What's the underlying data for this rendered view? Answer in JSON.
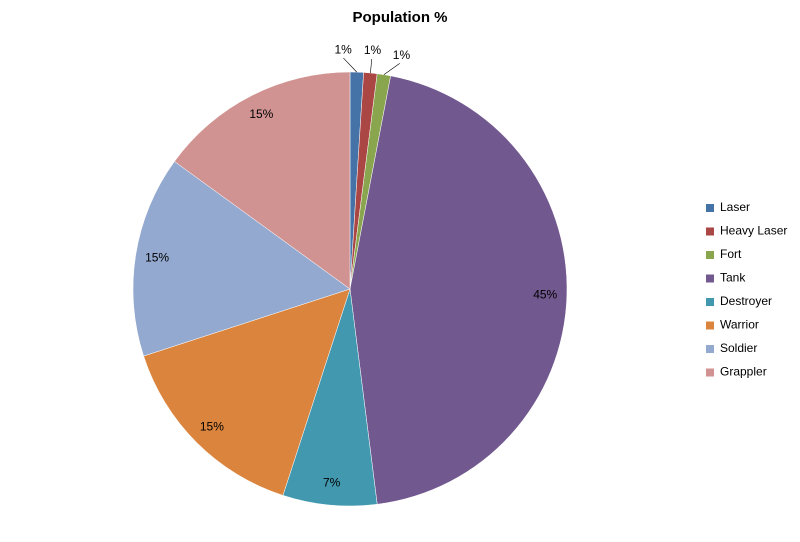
{
  "chart_data": {
    "type": "pie",
    "title": "Population %",
    "categories": [
      "Laser",
      "Heavy Laser",
      "Fort",
      "Tank",
      "Destroyer",
      "Warrior",
      "Soldier",
      "Grappler"
    ],
    "values": [
      1,
      1,
      1,
      45,
      7,
      15,
      15,
      15
    ],
    "value_labels": [
      "1%",
      "1%",
      "1%",
      "45%",
      "7%",
      "15%",
      "15%",
      "15%"
    ],
    "colors": [
      "#4572a7",
      "#aa4643",
      "#89a54e",
      "#71588f",
      "#4198af",
      "#db843d",
      "#93a9cf",
      "#d19392"
    ],
    "legend": "right"
  }
}
